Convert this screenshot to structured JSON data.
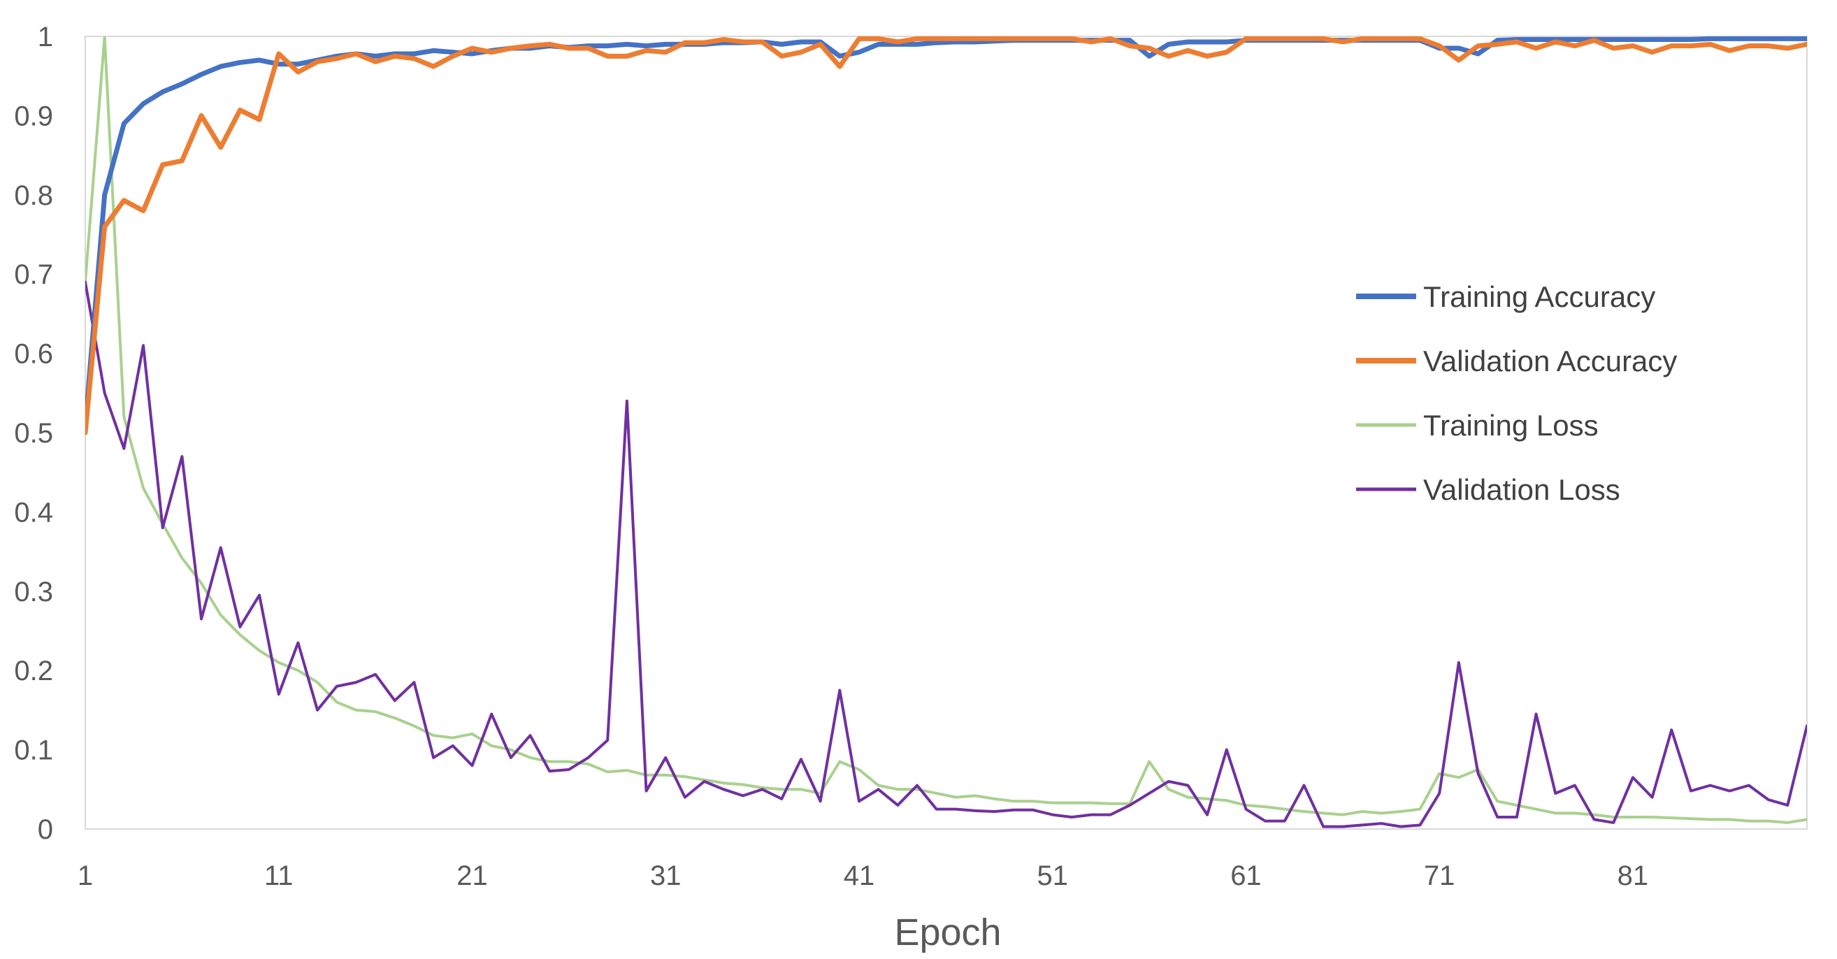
{
  "chart_data": {
    "type": "line",
    "title": "",
    "xlabel": "Epoch",
    "ylabel": "",
    "ylim": [
      0,
      1
    ],
    "xlim": [
      1,
      90
    ],
    "grid": false,
    "legend_position": "right",
    "x_tick_labels": [
      "1",
      "11",
      "21",
      "31",
      "41",
      "51",
      "61",
      "71",
      "81"
    ],
    "y_tick_labels": [
      "0",
      "0.1",
      "0.2",
      "0.3",
      "0.4",
      "0.5",
      "0.6",
      "0.7",
      "0.8",
      "0.9",
      "1"
    ],
    "x_start": 1,
    "series": [
      {
        "name": "Training Accuracy",
        "color": "#4472C4",
        "values": [
          0.51,
          0.8,
          0.89,
          0.915,
          0.93,
          0.94,
          0.952,
          0.962,
          0.967,
          0.97,
          0.965,
          0.965,
          0.97,
          0.975,
          0.978,
          0.975,
          0.978,
          0.978,
          0.982,
          0.98,
          0.978,
          0.982,
          0.985,
          0.985,
          0.988,
          0.986,
          0.988,
          0.988,
          0.99,
          0.988,
          0.99,
          0.99,
          0.99,
          0.992,
          0.992,
          0.993,
          0.99,
          0.993,
          0.993,
          0.975,
          0.98,
          0.99,
          0.99,
          0.99,
          0.992,
          0.993,
          0.993,
          0.994,
          0.995,
          0.995,
          0.995,
          0.995,
          0.995,
          0.995,
          0.995,
          0.975,
          0.99,
          0.993,
          0.993,
          0.993,
          0.995,
          0.995,
          0.995,
          0.995,
          0.995,
          0.995,
          0.995,
          0.995,
          0.995,
          0.995,
          0.985,
          0.985,
          0.978,
          0.995,
          0.996,
          0.996,
          0.996,
          0.996,
          0.996,
          0.996,
          0.996,
          0.996,
          0.996,
          0.996,
          0.997,
          0.997,
          0.997,
          0.997,
          0.997,
          0.997
        ]
      },
      {
        "name": "Validation Accuracy",
        "color": "#ED7D31",
        "values": [
          0.5,
          0.76,
          0.793,
          0.78,
          0.838,
          0.843,
          0.9,
          0.86,
          0.907,
          0.895,
          0.978,
          0.955,
          0.968,
          0.972,
          0.978,
          0.968,
          0.975,
          0.972,
          0.962,
          0.975,
          0.985,
          0.98,
          0.985,
          0.988,
          0.99,
          0.985,
          0.985,
          0.975,
          0.975,
          0.982,
          0.98,
          0.992,
          0.992,
          0.996,
          0.993,
          0.993,
          0.975,
          0.98,
          0.99,
          0.962,
          0.997,
          0.997,
          0.993,
          0.997,
          0.997,
          0.997,
          0.997,
          0.997,
          0.997,
          0.997,
          0.997,
          0.997,
          0.993,
          0.997,
          0.988,
          0.985,
          0.975,
          0.982,
          0.975,
          0.98,
          0.997,
          0.997,
          0.997,
          0.997,
          0.997,
          0.993,
          0.997,
          0.997,
          0.997,
          0.997,
          0.988,
          0.97,
          0.988,
          0.99,
          0.993,
          0.985,
          0.993,
          0.988,
          0.995,
          0.985,
          0.988,
          0.98,
          0.988,
          0.988,
          0.99,
          0.982,
          0.988,
          0.988,
          0.985,
          0.99
        ]
      },
      {
        "name": "Training Loss",
        "color": "#A9D18E",
        "values": [
          0.69,
          1.0,
          0.52,
          0.43,
          0.385,
          0.342,
          0.31,
          0.27,
          0.245,
          0.225,
          0.21,
          0.2,
          0.185,
          0.16,
          0.15,
          0.148,
          0.14,
          0.13,
          0.118,
          0.115,
          0.12,
          0.105,
          0.1,
          0.09,
          0.085,
          0.085,
          0.082,
          0.072,
          0.074,
          0.068,
          0.068,
          0.066,
          0.062,
          0.058,
          0.056,
          0.052,
          0.05,
          0.05,
          0.045,
          0.085,
          0.075,
          0.055,
          0.05,
          0.05,
          0.045,
          0.04,
          0.042,
          0.038,
          0.035,
          0.035,
          0.033,
          0.033,
          0.033,
          0.032,
          0.032,
          0.085,
          0.05,
          0.04,
          0.038,
          0.036,
          0.03,
          0.028,
          0.025,
          0.022,
          0.02,
          0.018,
          0.022,
          0.02,
          0.022,
          0.025,
          0.07,
          0.065,
          0.075,
          0.035,
          0.03,
          0.025,
          0.02,
          0.02,
          0.018,
          0.015,
          0.015,
          0.015,
          0.014,
          0.013,
          0.012,
          0.012,
          0.01,
          0.01,
          0.008,
          0.012
        ]
      },
      {
        "name": "Validation Loss",
        "color": "#7030A0",
        "values": [
          0.69,
          0.55,
          0.48,
          0.61,
          0.38,
          0.47,
          0.265,
          0.355,
          0.255,
          0.295,
          0.17,
          0.235,
          0.15,
          0.18,
          0.185,
          0.195,
          0.162,
          0.185,
          0.09,
          0.105,
          0.08,
          0.145,
          0.09,
          0.118,
          0.073,
          0.075,
          0.09,
          0.112,
          0.54,
          0.048,
          0.09,
          0.04,
          0.06,
          0.05,
          0.042,
          0.05,
          0.038,
          0.088,
          0.035,
          0.175,
          0.035,
          0.05,
          0.03,
          0.055,
          0.025,
          0.025,
          0.023,
          0.022,
          0.024,
          0.024,
          0.018,
          0.015,
          0.018,
          0.018,
          0.03,
          0.045,
          0.06,
          0.055,
          0.018,
          0.1,
          0.025,
          0.01,
          0.01,
          0.055,
          0.003,
          0.003,
          0.005,
          0.007,
          0.003,
          0.005,
          0.045,
          0.21,
          0.07,
          0.015,
          0.015,
          0.145,
          0.045,
          0.055,
          0.012,
          0.008,
          0.065,
          0.04,
          0.125,
          0.048,
          0.055,
          0.048,
          0.055,
          0.037,
          0.03,
          0.13
        ]
      }
    ]
  }
}
